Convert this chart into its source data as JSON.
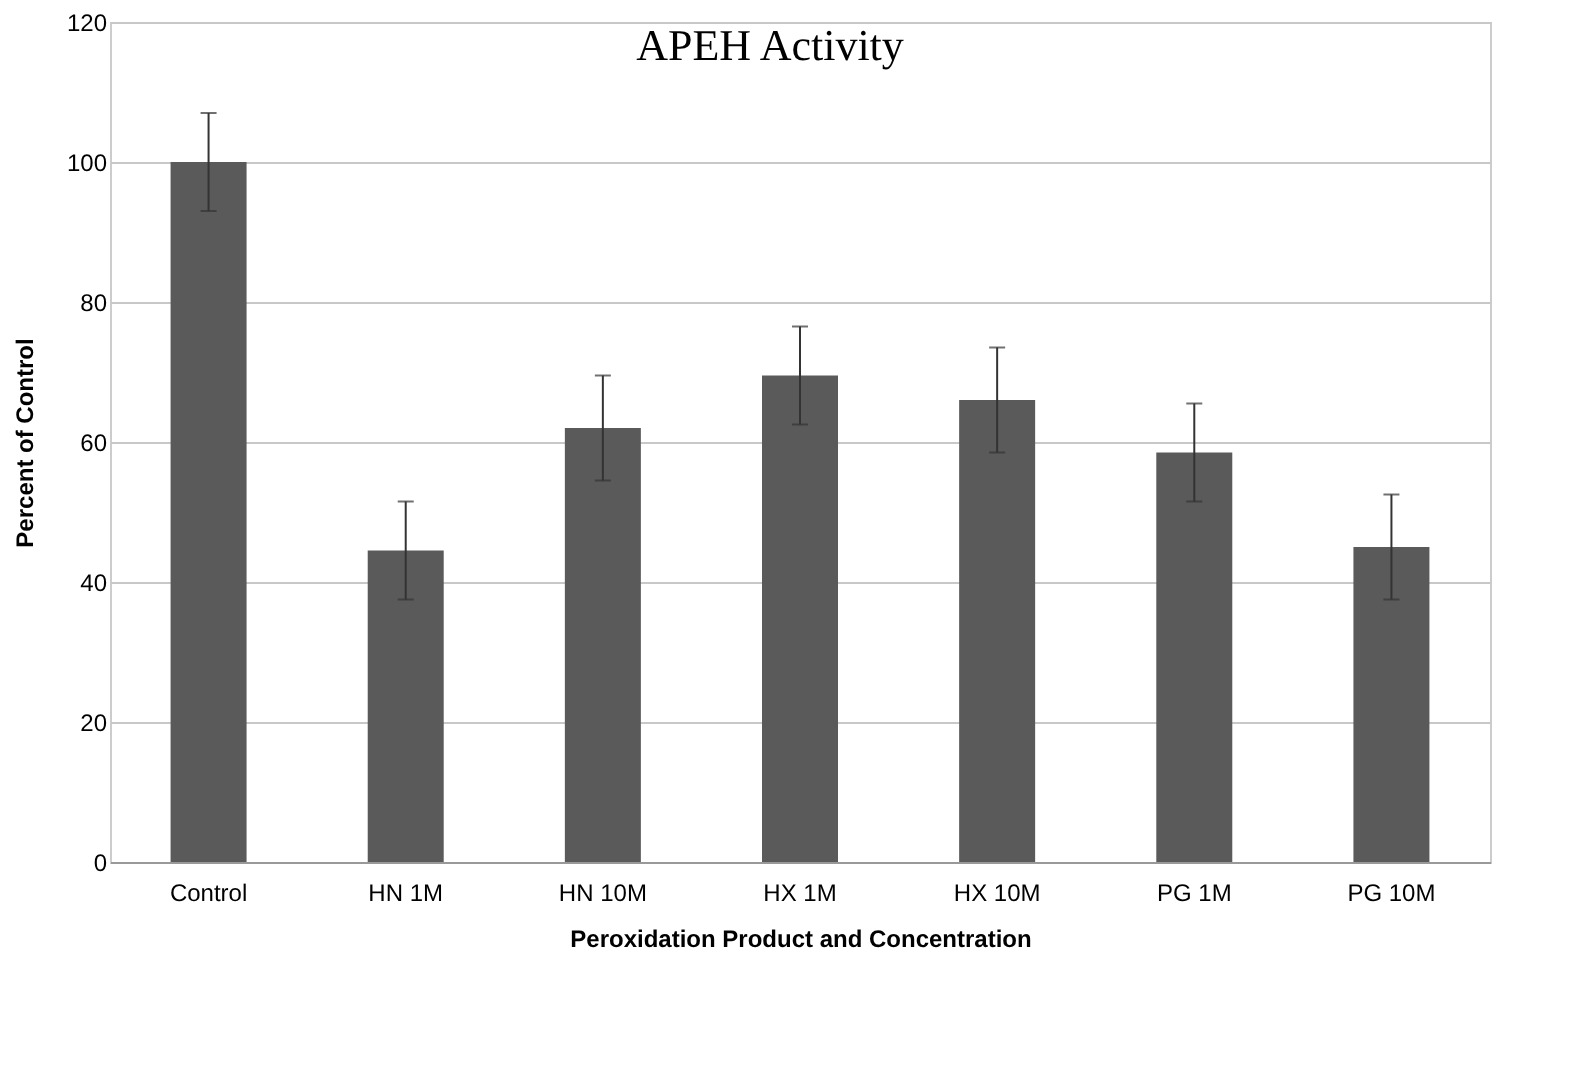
{
  "chart_data": {
    "type": "bar",
    "title": "APEH Activity",
    "xlabel": "Peroxidation Product and Concentration",
    "ylabel": "Percent of Control",
    "categories": [
      "Control",
      "HN 1M",
      "HN 10M",
      "HX 1M",
      "HX 10M",
      "PG 1M",
      "PG 10M"
    ],
    "values": [
      100,
      44.5,
      62,
      69.5,
      66,
      58.5,
      45
    ],
    "errors": [
      7,
      7,
      7.5,
      7,
      7.5,
      7,
      7.5
    ],
    "color": "#5a5a5a",
    "ylim": [
      0,
      120
    ],
    "yticks": [
      0,
      20,
      40,
      60,
      80,
      100,
      120
    ],
    "grid": "y"
  }
}
